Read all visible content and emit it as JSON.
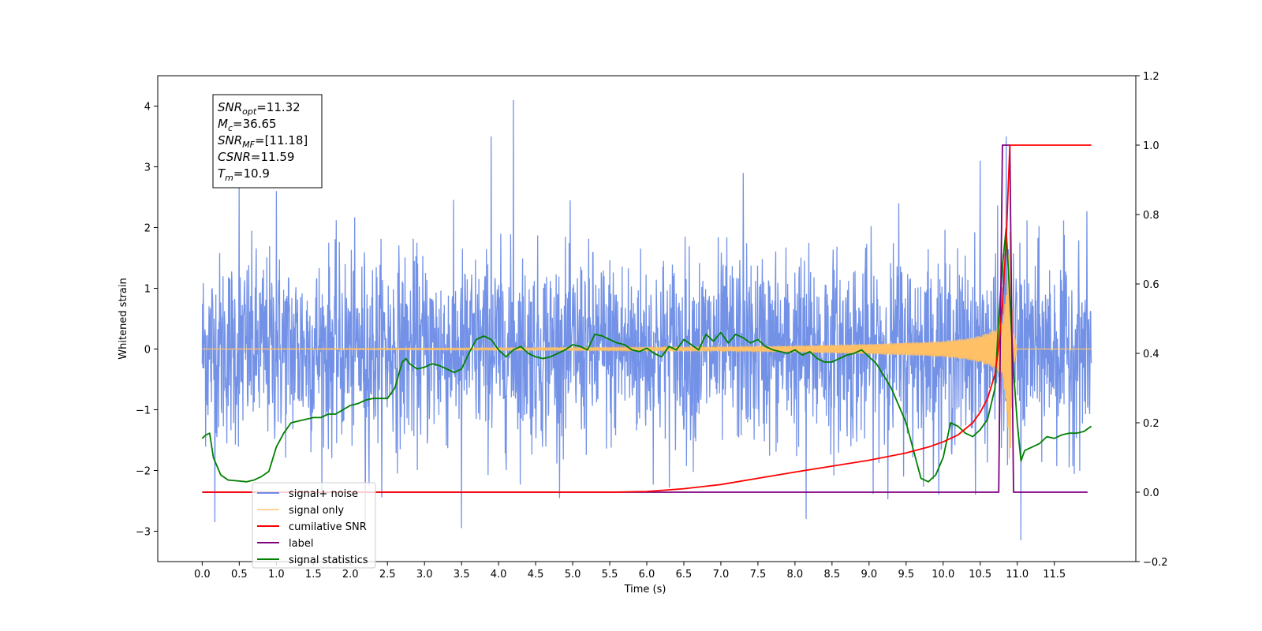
{
  "annotation": {
    "lines": [
      {
        "symbol": "SNR",
        "sub": "opt",
        "value": "=11.32"
      },
      {
        "symbol": "M",
        "sub": "c",
        "value": "=36.65"
      },
      {
        "symbol": "SNR",
        "sub": "MF",
        "value": "=[11.18]"
      },
      {
        "symbol": "CSNR",
        "sub": "",
        "value": "=11.59"
      },
      {
        "symbol": "T",
        "sub": "m",
        "value": "=10.9"
      }
    ]
  },
  "chart_data": {
    "type": "line",
    "xlabel": "Time (s)",
    "ylabel": "Whitened strain",
    "xlim": [
      -0.6,
      12.6
    ],
    "ylim_left": [
      -3.5,
      4.5
    ],
    "ylim_right": [
      -0.2,
      1.2
    ],
    "x_ticks": [
      "0.0",
      "0.5",
      "1.0",
      "1.5",
      "2.0",
      "2.5",
      "3.0",
      "3.5",
      "4.0",
      "4.5",
      "5.0",
      "5.5",
      "6.0",
      "6.5",
      "7.0",
      "7.5",
      "8.0",
      "8.5",
      "9.0",
      "9.5",
      "10.0",
      "10.5",
      "11.0",
      "11.5"
    ],
    "y_ticks_left": [
      -3,
      -2,
      -1,
      0,
      1,
      2,
      3,
      4
    ],
    "y_ticks_right": [
      -0.2,
      0.0,
      0.2,
      0.4,
      0.6,
      0.8,
      1.0,
      1.2
    ],
    "legend_position": "lower-left",
    "series": [
      {
        "name": "signal+ noise",
        "color": "#6b8ce6",
        "axis": "left",
        "description_points": {
          "envelope_peaks": [
            [
              0.5,
              2.7
            ],
            [
              1.0,
              2.6
            ],
            [
              3.9,
              3.5
            ],
            [
              4.2,
              4.1
            ],
            [
              7.3,
              2.9
            ],
            [
              9.4,
              2.4
            ],
            [
              10.5,
              3.1
            ],
            [
              10.85,
              3.5
            ]
          ],
          "envelope_troughs": [
            [
              0.17,
              -2.85
            ],
            [
              2.2,
              -2.9
            ],
            [
              3.5,
              -2.95
            ],
            [
              8.15,
              -2.8
            ],
            [
              11.05,
              -3.15
            ]
          ],
          "x_range": [
            0.0,
            12.0
          ]
        }
      },
      {
        "name": "signal only",
        "color": "#ffc066",
        "axis": "left",
        "x": [
          0.0,
          7.0,
          8.0,
          9.0,
          9.5,
          10.0,
          10.3,
          10.5,
          10.7,
          10.8,
          10.85,
          10.9,
          10.95,
          11.0,
          12.0
        ],
        "amplitude": [
          0.0,
          0.03,
          0.05,
          0.08,
          0.1,
          0.13,
          0.17,
          0.22,
          0.32,
          0.45,
          0.9,
          2.0,
          0.3,
          0.0,
          0.0
        ]
      },
      {
        "name": "cumilative SNR",
        "color": "#ff0000",
        "axis": "right",
        "x": [
          0.0,
          5.5,
          6.0,
          6.5,
          7.0,
          7.5,
          8.0,
          8.5,
          9.0,
          9.5,
          9.8,
          10.0,
          10.2,
          10.4,
          10.5,
          10.6,
          10.7,
          10.75,
          10.8,
          10.85,
          10.9,
          11.0,
          11.5,
          12.0
        ],
        "y": [
          0.0,
          0.0,
          0.002,
          0.01,
          0.022,
          0.04,
          0.058,
          0.075,
          0.092,
          0.113,
          0.13,
          0.145,
          0.165,
          0.2,
          0.23,
          0.27,
          0.34,
          0.42,
          0.54,
          0.72,
          1.0,
          1.0,
          1.0,
          1.0
        ]
      },
      {
        "name": "label",
        "color": "#800080",
        "axis": "right",
        "x": [
          0.0,
          10.75,
          10.8,
          10.9,
          10.95,
          11.95
        ],
        "y": [
          0.0,
          0.0,
          1.0,
          1.0,
          0.0,
          0.0
        ]
      },
      {
        "name": "signal statistics",
        "color": "#008000",
        "axis": "right",
        "x": [
          0.0,
          0.05,
          0.1,
          0.15,
          0.25,
          0.35,
          0.5,
          0.6,
          0.7,
          0.8,
          0.9,
          1.0,
          1.1,
          1.2,
          1.3,
          1.4,
          1.5,
          1.6,
          1.7,
          1.8,
          2.0,
          2.1,
          2.2,
          2.3,
          2.4,
          2.5,
          2.6,
          2.7,
          2.75,
          2.8,
          2.9,
          3.0,
          3.1,
          3.2,
          3.3,
          3.4,
          3.5,
          3.6,
          3.7,
          3.8,
          3.9,
          4.0,
          4.1,
          4.2,
          4.3,
          4.4,
          4.5,
          4.6,
          4.7,
          4.8,
          4.9,
          5.0,
          5.1,
          5.2,
          5.3,
          5.4,
          5.5,
          5.6,
          5.7,
          5.8,
          5.9,
          6.0,
          6.1,
          6.2,
          6.3,
          6.4,
          6.5,
          6.6,
          6.7,
          6.8,
          6.9,
          7.0,
          7.1,
          7.2,
          7.3,
          7.4,
          7.5,
          7.6,
          7.7,
          7.8,
          7.9,
          8.0,
          8.1,
          8.2,
          8.3,
          8.4,
          8.5,
          8.6,
          8.7,
          8.8,
          8.9,
          9.0,
          9.1,
          9.2,
          9.3,
          9.4,
          9.5,
          9.6,
          9.7,
          9.8,
          9.9,
          10.0,
          10.1,
          10.2,
          10.3,
          10.4,
          10.5,
          10.6,
          10.7,
          10.75,
          10.8,
          10.85,
          10.9,
          10.95,
          11.0,
          11.05,
          11.1,
          11.2,
          11.3,
          11.4,
          11.5,
          11.6,
          11.7,
          11.8,
          11.9,
          12.0
        ],
        "y": [
          0.155,
          0.165,
          0.17,
          0.1,
          0.05,
          0.035,
          0.032,
          0.03,
          0.035,
          0.045,
          0.06,
          0.13,
          0.17,
          0.2,
          0.205,
          0.21,
          0.215,
          0.215,
          0.225,
          0.225,
          0.25,
          0.255,
          0.265,
          0.27,
          0.27,
          0.27,
          0.3,
          0.375,
          0.385,
          0.37,
          0.355,
          0.36,
          0.37,
          0.365,
          0.355,
          0.345,
          0.355,
          0.4,
          0.44,
          0.45,
          0.44,
          0.41,
          0.39,
          0.41,
          0.42,
          0.4,
          0.39,
          0.385,
          0.39,
          0.4,
          0.41,
          0.425,
          0.42,
          0.41,
          0.455,
          0.45,
          0.44,
          0.43,
          0.425,
          0.41,
          0.405,
          0.415,
          0.4,
          0.39,
          0.42,
          0.41,
          0.44,
          0.425,
          0.41,
          0.455,
          0.435,
          0.46,
          0.43,
          0.455,
          0.445,
          0.43,
          0.44,
          0.42,
          0.41,
          0.405,
          0.4,
          0.41,
          0.395,
          0.405,
          0.385,
          0.375,
          0.375,
          0.385,
          0.395,
          0.4,
          0.41,
          0.39,
          0.37,
          0.335,
          0.3,
          0.25,
          0.2,
          0.12,
          0.04,
          0.03,
          0.05,
          0.1,
          0.2,
          0.19,
          0.17,
          0.16,
          0.18,
          0.21,
          0.3,
          0.5,
          0.65,
          0.76,
          0.56,
          0.35,
          0.2,
          0.09,
          0.12,
          0.13,
          0.14,
          0.16,
          0.155,
          0.165,
          0.17,
          0.17,
          0.175,
          0.19
        ]
      }
    ]
  }
}
